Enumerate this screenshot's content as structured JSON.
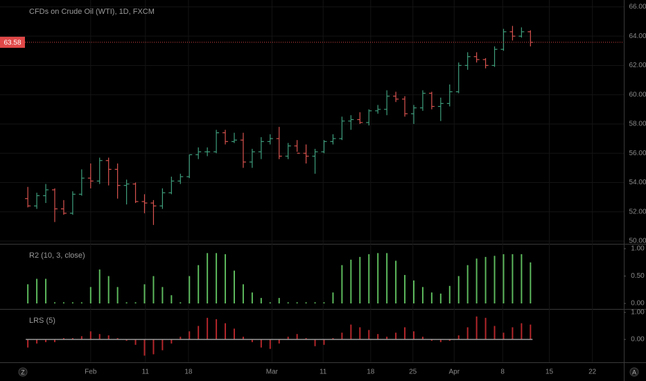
{
  "chart_data": [
    {
      "type": "ohlc",
      "title": "CFDs on Crude Oil (WTI), 1D, FXCM",
      "up_color": "#3e9e7c",
      "down_color": "#d9534f",
      "open": [
        52.9,
        52.4,
        53.1,
        53.5,
        52.2,
        51.9,
        53.2,
        54.3,
        54.1,
        55.5,
        54.9,
        53.8,
        53.9,
        52.7,
        52.6,
        52.4,
        53.3,
        54.1,
        54.4,
        55.9,
        56.1,
        56.1,
        57.4,
        56.8,
        56.9,
        55.4,
        56.1,
        56.8,
        57.0,
        55.8,
        56.5,
        56.0,
        55.8,
        56.1,
        56.8,
        57.0,
        58.2,
        58.3,
        58.1,
        58.9,
        59.0,
        59.9,
        59.7,
        58.7,
        59.1,
        60.1,
        59.2,
        59.4,
        60.2,
        62.0,
        62.6,
        62.4,
        62.0,
        63.1,
        64.3,
        64.0,
        64.3
      ],
      "high": [
        53.7,
        53.3,
        53.9,
        53.6,
        52.8,
        53.4,
        54.9,
        55.3,
        55.7,
        55.7,
        55.3,
        54.2,
        54.0,
        53.2,
        52.8,
        53.6,
        54.4,
        54.6,
        55.9,
        56.4,
        56.4,
        57.6,
        57.6,
        57.4,
        57.4,
        56.3,
        57.1,
        57.3,
        57.8,
        56.7,
        56.9,
        56.6,
        56.3,
        56.9,
        57.3,
        58.5,
        58.6,
        58.8,
        59.0,
        59.3,
        60.3,
        60.2,
        59.9,
        59.3,
        60.3,
        60.2,
        59.8,
        60.7,
        62.2,
        62.9,
        62.9,
        62.5,
        63.3,
        64.5,
        64.7,
        64.6,
        64.4
      ],
      "low": [
        52.3,
        52.2,
        52.6,
        51.3,
        51.8,
        51.8,
        53.1,
        53.6,
        53.9,
        53.8,
        52.9,
        52.5,
        52.6,
        51.9,
        51.1,
        52.2,
        53.2,
        53.9,
        54.3,
        55.6,
        55.8,
        56.0,
        56.6,
        56.7,
        55.0,
        55.0,
        55.6,
        56.6,
        55.6,
        55.6,
        56.1,
        55.3,
        54.6,
        56.0,
        56.6,
        56.9,
        57.6,
        58.0,
        57.9,
        58.7,
        58.6,
        59.5,
        58.5,
        58.0,
        58.9,
        59.0,
        58.2,
        59.2,
        60.1,
        61.7,
        62.2,
        61.8,
        61.9,
        63.0,
        63.7,
        63.9,
        63.3
      ],
      "close": [
        52.4,
        53.1,
        53.5,
        52.2,
        51.9,
        53.2,
        54.3,
        54.1,
        55.5,
        54.9,
        53.8,
        53.9,
        52.7,
        52.6,
        52.4,
        53.3,
        54.1,
        54.4,
        55.9,
        56.1,
        56.1,
        57.4,
        56.8,
        56.9,
        55.4,
        56.1,
        56.8,
        57.0,
        55.8,
        56.5,
        56.0,
        55.8,
        56.1,
        56.8,
        57.0,
        58.2,
        58.3,
        58.1,
        58.9,
        59.0,
        59.9,
        59.7,
        58.7,
        59.1,
        60.1,
        59.2,
        59.4,
        60.2,
        62.0,
        62.6,
        62.4,
        62.0,
        63.1,
        64.3,
        64.0,
        64.3,
        63.58
      ],
      "price_line": 63.58,
      "price_line_color": "#e04848",
      "xlim": [
        -3.1,
        66.4
      ],
      "xticks": [
        {
          "value": 7,
          "label": "Feb"
        },
        {
          "value": 13.1,
          "label": "11"
        },
        {
          "value": 17.9,
          "label": "18"
        },
        {
          "value": 27.2,
          "label": "Mar"
        },
        {
          "value": 32.9,
          "label": "11"
        },
        {
          "value": 38.2,
          "label": "18"
        },
        {
          "value": 42.9,
          "label": "25"
        },
        {
          "value": 47.5,
          "label": "Apr"
        },
        {
          "value": 52.9,
          "label": "8"
        },
        {
          "value": 58.1,
          "label": "15"
        },
        {
          "value": 62.9,
          "label": "22"
        }
      ],
      "ylim": [
        49.81,
        66.47
      ],
      "yticks": [
        {
          "value": 50,
          "label": "50.00"
        },
        {
          "value": 52,
          "label": "52.00"
        },
        {
          "value": 54,
          "label": "54.00"
        },
        {
          "value": 56,
          "label": "56.00"
        },
        {
          "value": 58,
          "label": "58.00"
        },
        {
          "value": 60,
          "label": "60.00"
        },
        {
          "value": 62,
          "label": "62.00"
        },
        {
          "value": 64,
          "label": "64.00"
        },
        {
          "value": 66,
          "label": "66.00"
        }
      ],
      "grid": true
    },
    {
      "type": "bar",
      "title": "R2 (10, 3, close)",
      "color": "#5cb85c",
      "values": [
        0.35,
        0.45,
        0.45,
        0.02,
        0.02,
        0.02,
        0.02,
        0.3,
        0.62,
        0.5,
        0.3,
        0.02,
        0.02,
        0.35,
        0.5,
        0.3,
        0.15,
        0.02,
        0.5,
        0.7,
        0.92,
        0.92,
        0.9,
        0.6,
        0.35,
        0.2,
        0.1,
        0.02,
        0.1,
        0.02,
        0.02,
        0.02,
        0.02,
        0.02,
        0.2,
        0.7,
        0.8,
        0.85,
        0.9,
        0.92,
        0.92,
        0.78,
        0.52,
        0.42,
        0.3,
        0.2,
        0.18,
        0.32,
        0.5,
        0.7,
        0.82,
        0.85,
        0.87,
        0.9,
        0.9,
        0.9,
        0.75
      ],
      "ylim": [
        -0.101,
        1.089
      ],
      "yticks": [
        {
          "value": 0,
          "label": "0.00"
        },
        {
          "value": 0.5,
          "label": "0.50"
        },
        {
          "value": 1,
          "label": "1.00"
        }
      ]
    },
    {
      "type": "bar",
      "title": "LRS (5)",
      "color": "#b3262a",
      "zero_color": "#9a9a9a",
      "values": [
        -0.3,
        -0.15,
        -0.1,
        -0.1,
        0.05,
        0.05,
        0.12,
        0.3,
        0.2,
        0.15,
        0.05,
        -0.05,
        -0.2,
        -0.6,
        -0.55,
        -0.4,
        -0.15,
        0.1,
        0.3,
        0.5,
        0.8,
        0.75,
        0.6,
        0.4,
        0.1,
        -0.1,
        -0.3,
        -0.35,
        -0.15,
        0.1,
        0.2,
        0.05,
        -0.25,
        -0.2,
        0.05,
        0.25,
        0.55,
        0.45,
        0.35,
        0.2,
        0.1,
        0.25,
        0.45,
        0.3,
        0.1,
        -0.05,
        -0.1,
        -0.05,
        0.15,
        0.45,
        0.85,
        0.8,
        0.5,
        0.25,
        0.45,
        0.6,
        0.55
      ],
      "ylim": [
        -0.846,
        1.128
      ],
      "yticks": [
        {
          "value": 0,
          "label": "0.00"
        },
        {
          "value": 1,
          "label": "1.00"
        }
      ]
    }
  ]
}
